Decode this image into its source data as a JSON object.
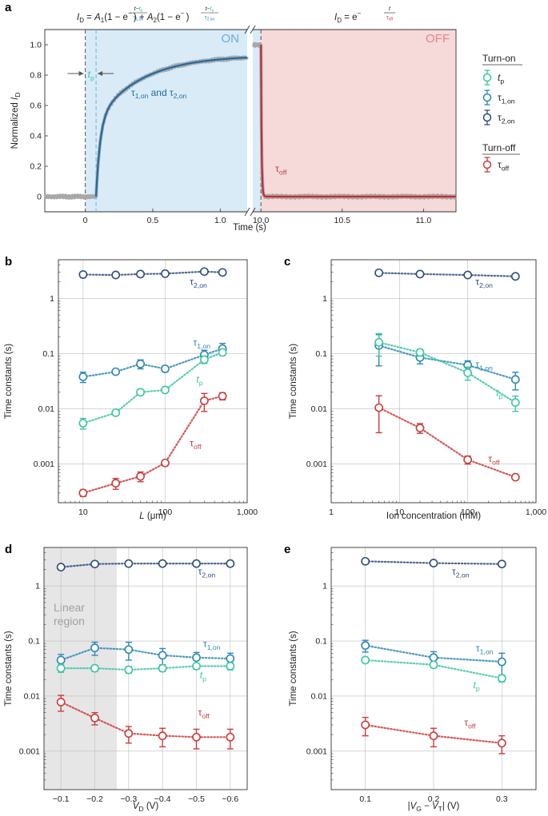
{
  "colors": {
    "tp": "#3cc6a2",
    "t1": "#2d87b5",
    "t2": "#2e4c80",
    "toff": "#cc3b3b",
    "on_shade": "#d8ebf7",
    "off_shade": "#f6d9d9",
    "linear_shade": "#e6e6e6",
    "fit_on": "#1f6aa6",
    "fit_off": "#c62d33",
    "raw": "#a8a8a8"
  },
  "chart_data": [
    {
      "panel": "a",
      "type": "line",
      "title_on": "I_D = A_1(1 − e^(−(t−t_p)/τ_1,on)) + A_2(1 − e^(−(t−t_p)/τ_2,on))",
      "title_off": "I_D = e^(−t/τ_off)",
      "xlabel": "Time (s)",
      "ylabel": "Normalized I_D",
      "ylim": [
        -0.1,
        1.1
      ],
      "yticks": [
        "0",
        "0.2",
        "0.4",
        "0.6",
        "0.8",
        "1.0"
      ],
      "left_xlim": [
        -0.3,
        1.2
      ],
      "left_xticks": [
        "0",
        "0.5",
        "1.0"
      ],
      "right_xlim": [
        9.95,
        11.2
      ],
      "right_xticks": [
        "10.0",
        "10.5",
        "11.0"
      ],
      "on_label": "ON",
      "off_label": "OFF",
      "annotations": {
        "tp": "t_p",
        "t12": "τ_1,on and τ_2,on",
        "toff": "τ_off"
      },
      "params": {
        "tp": 0.08,
        "A1": 0.5,
        "tau1": 0.03,
        "A2": 0.43,
        "tau2": 0.33,
        "toff_start": 10.0,
        "tau_off": 0.004
      },
      "legend": {
        "on_title": "Turn-on",
        "off_title": "Turn-off",
        "items": [
          {
            "key": "tp",
            "label": "t_p"
          },
          {
            "key": "t1",
            "label": "τ_1,on"
          },
          {
            "key": "t2",
            "label": "τ_2,on"
          },
          {
            "key": "toff",
            "label": "τ_off"
          }
        ]
      }
    },
    {
      "panel": "b",
      "type": "scatter",
      "xscale": "log",
      "yscale": "log",
      "xlim": [
        5,
        1000
      ],
      "ylim": [
        0.0002,
        5
      ],
      "xticks": [
        {
          "v": 10,
          "label": "10"
        },
        {
          "v": 100,
          "label": "100"
        },
        {
          "v": 1000,
          "label": "1,000"
        }
      ],
      "yticks": [
        {
          "v": 0.001,
          "label": "0.001"
        },
        {
          "v": 0.01,
          "label": "0.01"
        },
        {
          "v": 0.1,
          "label": "0.1"
        },
        {
          "v": 1,
          "label": "1"
        }
      ],
      "xlabel": "L (μm)",
      "ylabel": "Time constants (s)",
      "x": [
        10,
        25,
        50,
        100,
        300,
        500
      ],
      "series": [
        {
          "key": "t2",
          "name": "τ_2,on",
          "values": [
            2.7,
            2.65,
            2.75,
            2.8,
            3.05,
            2.95
          ],
          "err": [
            0,
            0,
            0,
            0,
            0,
            0
          ],
          "label_at": [
            200,
            1.75
          ]
        },
        {
          "key": "t1",
          "name": "τ_1,on",
          "values": [
            0.038,
            0.047,
            0.065,
            0.053,
            0.095,
            0.123
          ],
          "err": [
            0.008,
            0.004,
            0.012,
            0.006,
            0.02,
            0.03
          ],
          "label_at": [
            220,
            0.14
          ]
        },
        {
          "key": "tp",
          "name": "t_p",
          "values": [
            0.0055,
            0.0085,
            0.02,
            0.022,
            0.078,
            0.105
          ],
          "err": [
            0.0012,
            0.0008,
            0.002,
            0.002,
            0.012,
            0.01
          ],
          "label_at": [
            240,
            0.03
          ]
        },
        {
          "key": "toff",
          "name": "τ_off",
          "values": [
            0.0003,
            0.00045,
            0.0006,
            0.00105,
            0.014,
            0.017
          ],
          "err": [
            4e-05,
            0.0001,
            0.00012,
            0.00012,
            0.005,
            0.0025
          ],
          "label_at": [
            200,
            0.0021
          ]
        }
      ]
    },
    {
      "panel": "c",
      "type": "scatter",
      "xscale": "log",
      "yscale": "log",
      "xlim": [
        1,
        1000
      ],
      "ylim": [
        0.0002,
        5
      ],
      "xticks": [
        {
          "v": 1,
          "label": "1"
        },
        {
          "v": 10,
          "label": "10"
        },
        {
          "v": 100,
          "label": "100"
        },
        {
          "v": 1000,
          "label": "1,000"
        }
      ],
      "yticks": [
        {
          "v": 0.001,
          "label": "0.001"
        },
        {
          "v": 0.01,
          "label": "0.01"
        },
        {
          "v": 0.1,
          "label": "0.1"
        },
        {
          "v": 1,
          "label": "1"
        }
      ],
      "xlabel": "Ion concentration (mM)",
      "ylabel": "Time constants (s)",
      "x": [
        5,
        20,
        100,
        500
      ],
      "series": [
        {
          "key": "t2",
          "name": "τ_2,on",
          "values": [
            2.9,
            2.75,
            2.65,
            2.5
          ],
          "err": [
            0,
            0,
            0,
            0
          ],
          "label_at": [
            130,
            1.75
          ]
        },
        {
          "key": "t1",
          "name": "τ_1,on",
          "values": [
            0.14,
            0.085,
            0.062,
            0.034
          ],
          "err": [
            0.08,
            0.02,
            0.012,
            0.012
          ],
          "label_at": [
            130,
            0.056
          ]
        },
        {
          "key": "tp",
          "name": "t_p",
          "values": [
            0.16,
            0.105,
            0.045,
            0.013
          ],
          "err": [
            0.07,
            0.015,
            0.012,
            0.004
          ],
          "label_at": [
            260,
            0.017
          ]
        },
        {
          "key": "toff",
          "name": "τ_off",
          "values": [
            0.0105,
            0.0045,
            0.0012,
            0.00058
          ],
          "err": [
            0.0068,
            0.0009,
            0.0002,
            5e-05
          ],
          "label_at": [
            200,
            0.0011
          ]
        }
      ]
    },
    {
      "panel": "d",
      "type": "scatter",
      "xscale": "linear",
      "yscale": "log",
      "xlim": [
        -0.05,
        -0.65
      ],
      "ylim": [
        0.0002,
        5
      ],
      "xticks": [
        {
          "v": -0.1,
          "label": "−0.1"
        },
        {
          "v": -0.2,
          "label": "−0.2"
        },
        {
          "v": -0.3,
          "label": "−0.3"
        },
        {
          "v": -0.4,
          "label": "−0.4"
        },
        {
          "v": -0.5,
          "label": "−0.5"
        },
        {
          "v": -0.6,
          "label": "−0.6"
        }
      ],
      "yticks": [
        {
          "v": 0.001,
          "label": "0.001"
        },
        {
          "v": 0.01,
          "label": "0.01"
        },
        {
          "v": 0.1,
          "label": "0.1"
        },
        {
          "v": 1,
          "label": "1"
        }
      ],
      "xlabel": "V_D (V)",
      "ylabel": "Time constants (s)",
      "linear_region": [
        -0.05,
        -0.265
      ],
      "linear_region_label": [
        "Linear",
        "region"
      ],
      "x": [
        -0.1,
        -0.2,
        -0.3,
        -0.4,
        -0.5,
        -0.6
      ],
      "series": [
        {
          "key": "t2",
          "name": "τ_2,on",
          "values": [
            2.2,
            2.5,
            2.55,
            2.55,
            2.55,
            2.55
          ],
          "err": [
            0,
            0,
            0,
            0,
            0,
            0
          ],
          "label_at": [
            -0.505,
            1.6
          ]
        },
        {
          "key": "t1",
          "name": "τ_1,on",
          "values": [
            0.045,
            0.075,
            0.07,
            0.055,
            0.05,
            0.048
          ],
          "err": [
            0.012,
            0.02,
            0.025,
            0.018,
            0.012,
            0.012
          ],
          "label_at": [
            -0.52,
            0.078
          ]
        },
        {
          "key": "tp",
          "name": "t_p",
          "values": [
            0.032,
            0.032,
            0.03,
            0.032,
            0.035,
            0.035
          ],
          "err": [
            0.005,
            0.004,
            0.004,
            0.004,
            0.004,
            0.005
          ],
          "label_at": [
            -0.51,
            0.021
          ]
        },
        {
          "key": "toff",
          "name": "τ_off",
          "values": [
            0.0078,
            0.004,
            0.0021,
            0.0019,
            0.0018,
            0.0018
          ],
          "err": [
            0.0025,
            0.001,
            0.0007,
            0.0007,
            0.0007,
            0.0007
          ],
          "label_at": [
            -0.505,
            0.0044
          ]
        }
      ]
    },
    {
      "panel": "e",
      "type": "scatter",
      "xscale": "linear",
      "yscale": "log",
      "xlim": [
        0.05,
        0.35
      ],
      "ylim": [
        0.0002,
        5
      ],
      "xticks": [
        {
          "v": 0.1,
          "label": "0.1"
        },
        {
          "v": 0.2,
          "label": "0.2"
        },
        {
          "v": 0.3,
          "label": "0.3"
        }
      ],
      "yticks": [
        {
          "v": 0.001,
          "label": "0.001"
        },
        {
          "v": 0.01,
          "label": "0.01"
        },
        {
          "v": 0.1,
          "label": "0.1"
        },
        {
          "v": 1,
          "label": "1"
        }
      ],
      "xlabel": "|V_G − V_T| (V)",
      "ylabel": "Time constants (s)",
      "x": [
        0.1,
        0.2,
        0.3
      ],
      "series": [
        {
          "key": "t2",
          "name": "τ_2,on",
          "values": [
            2.8,
            2.6,
            2.5
          ],
          "err": [
            0,
            0,
            0
          ],
          "label_at": [
            0.227,
            1.6
          ]
        },
        {
          "key": "t1",
          "name": "τ_1,on",
          "values": [
            0.083,
            0.05,
            0.042
          ],
          "err": [
            0.02,
            0.014,
            0.018
          ],
          "label_at": [
            0.262,
            0.065
          ]
        },
        {
          "key": "tp",
          "name": "t_p",
          "values": [
            0.045,
            0.037,
            0.021
          ],
          "err": [
            0.005,
            0.004,
            0.003
          ],
          "label_at": [
            0.258,
            0.014
          ]
        },
        {
          "key": "toff",
          "name": "τ_off",
          "values": [
            0.003,
            0.0019,
            0.0014
          ],
          "err": [
            0.0011,
            0.0007,
            0.0005
          ],
          "label_at": [
            0.245,
            0.0029
          ]
        }
      ]
    }
  ],
  "panel_letters": [
    "a",
    "b",
    "c",
    "d",
    "e"
  ]
}
